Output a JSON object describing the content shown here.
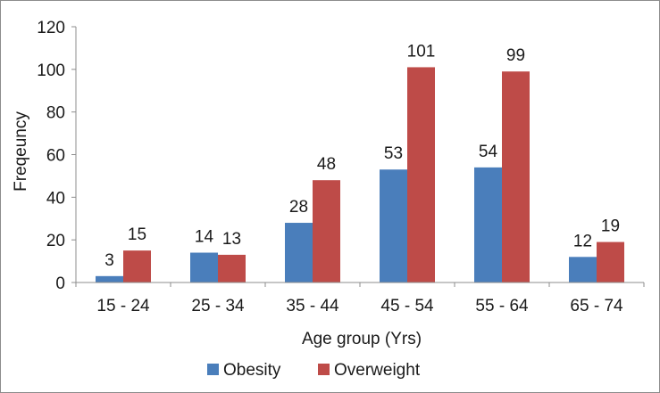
{
  "chart_data": {
    "type": "bar",
    "title": "",
    "xlabel": "Age group (Yrs)",
    "ylabel": "Freqeuncy",
    "categories": [
      "15 - 24",
      "25 - 34",
      "35 - 44",
      "45 - 54",
      "55 - 64",
      "65 - 74"
    ],
    "series": [
      {
        "name": "Obesity",
        "values": [
          3,
          14,
          28,
          53,
          54,
          12
        ],
        "color": "#4a7ebb"
      },
      {
        "name": "Overweight",
        "values": [
          15,
          13,
          48,
          101,
          99,
          19
        ],
        "color": "#be4b48"
      }
    ],
    "ylim": [
      0,
      120
    ],
    "yticks": [
      0,
      20,
      40,
      60,
      80,
      100,
      120
    ],
    "grid": false,
    "legend": "bottom"
  }
}
